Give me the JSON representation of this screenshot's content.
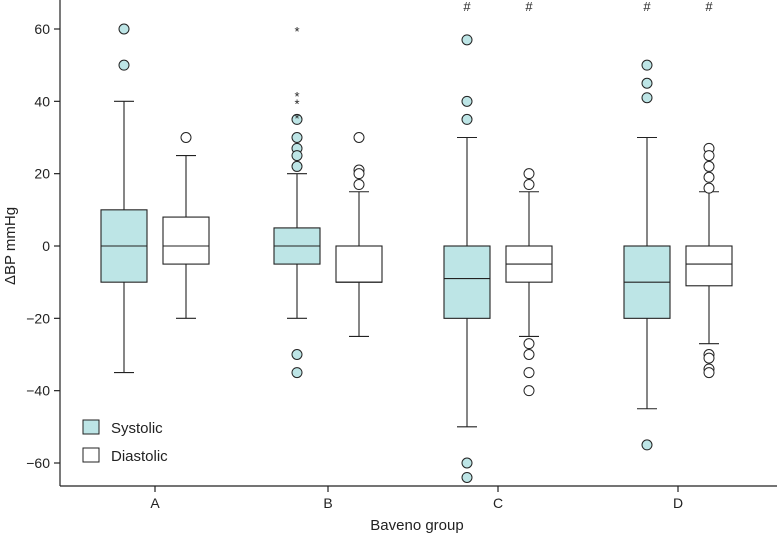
{
  "chart_data": {
    "type": "boxplot",
    "title": "",
    "xlabel": "Baveno group",
    "ylabel": "ΔBP mmHg",
    "ylim": [
      -65,
      65
    ],
    "yticks": [
      -60,
      -40,
      -20,
      0,
      20,
      40,
      60
    ],
    "categories": [
      "A",
      "B",
      "C",
      "D"
    ],
    "legend": {
      "position": "bottom-left",
      "entries": [
        {
          "label": "Systolic",
          "color": "#bde5e6"
        },
        {
          "label": "Diastolic",
          "color": "#ffffff"
        }
      ]
    },
    "series": [
      {
        "name": "Systolic",
        "color": "#bde5e6",
        "boxes": [
          {
            "category": "A",
            "whisker_low": -35,
            "q1": -10,
            "median": 0,
            "q3": 10,
            "whisker_high": 40,
            "outliers": [
              60,
              50
            ],
            "stars": [],
            "annotation": ""
          },
          {
            "category": "B",
            "whisker_low": -20,
            "q1": -5,
            "median": 0,
            "q3": 5,
            "whisker_high": 20,
            "outliers": [
              35,
              30,
              27,
              25,
              22,
              -30,
              -35
            ],
            "stars": [
              60,
              42,
              40,
              36
            ],
            "annotation": ""
          },
          {
            "category": "C",
            "whisker_low": -50,
            "q1": -20,
            "median": -9,
            "q3": 0,
            "whisker_high": 30,
            "outliers": [
              57,
              40,
              35,
              -60,
              -64
            ],
            "stars": [],
            "annotation": "#"
          },
          {
            "category": "D",
            "whisker_low": -45,
            "q1": -20,
            "median": -10,
            "q3": 0,
            "whisker_high": 30,
            "outliers": [
              50,
              45,
              41,
              -55
            ],
            "stars": [],
            "annotation": "#"
          }
        ]
      },
      {
        "name": "Diastolic",
        "color": "#ffffff",
        "boxes": [
          {
            "category": "A",
            "whisker_low": -20,
            "q1": -5,
            "median": 0,
            "q3": 8,
            "whisker_high": 25,
            "outliers": [
              30
            ],
            "stars": [],
            "annotation": ""
          },
          {
            "category": "B",
            "whisker_low": -25,
            "q1": -10,
            "median": -10,
            "q3": 0,
            "whisker_high": 15,
            "outliers": [
              30,
              21,
              20,
              17
            ],
            "stars": [],
            "annotation": ""
          },
          {
            "category": "C",
            "whisker_low": -25,
            "q1": -10,
            "median": -5,
            "q3": 0,
            "whisker_high": 15,
            "outliers": [
              20,
              17,
              -27,
              -30,
              -35,
              -40
            ],
            "stars": [],
            "annotation": "#"
          },
          {
            "category": "D",
            "whisker_low": -27,
            "q1": -11,
            "median": -5,
            "q3": 0,
            "whisker_high": 15,
            "outliers": [
              27,
              25,
              22,
              19,
              16,
              -30,
              -31,
              -34,
              -35
            ],
            "stars": [],
            "annotation": "#"
          }
        ]
      }
    ]
  }
}
